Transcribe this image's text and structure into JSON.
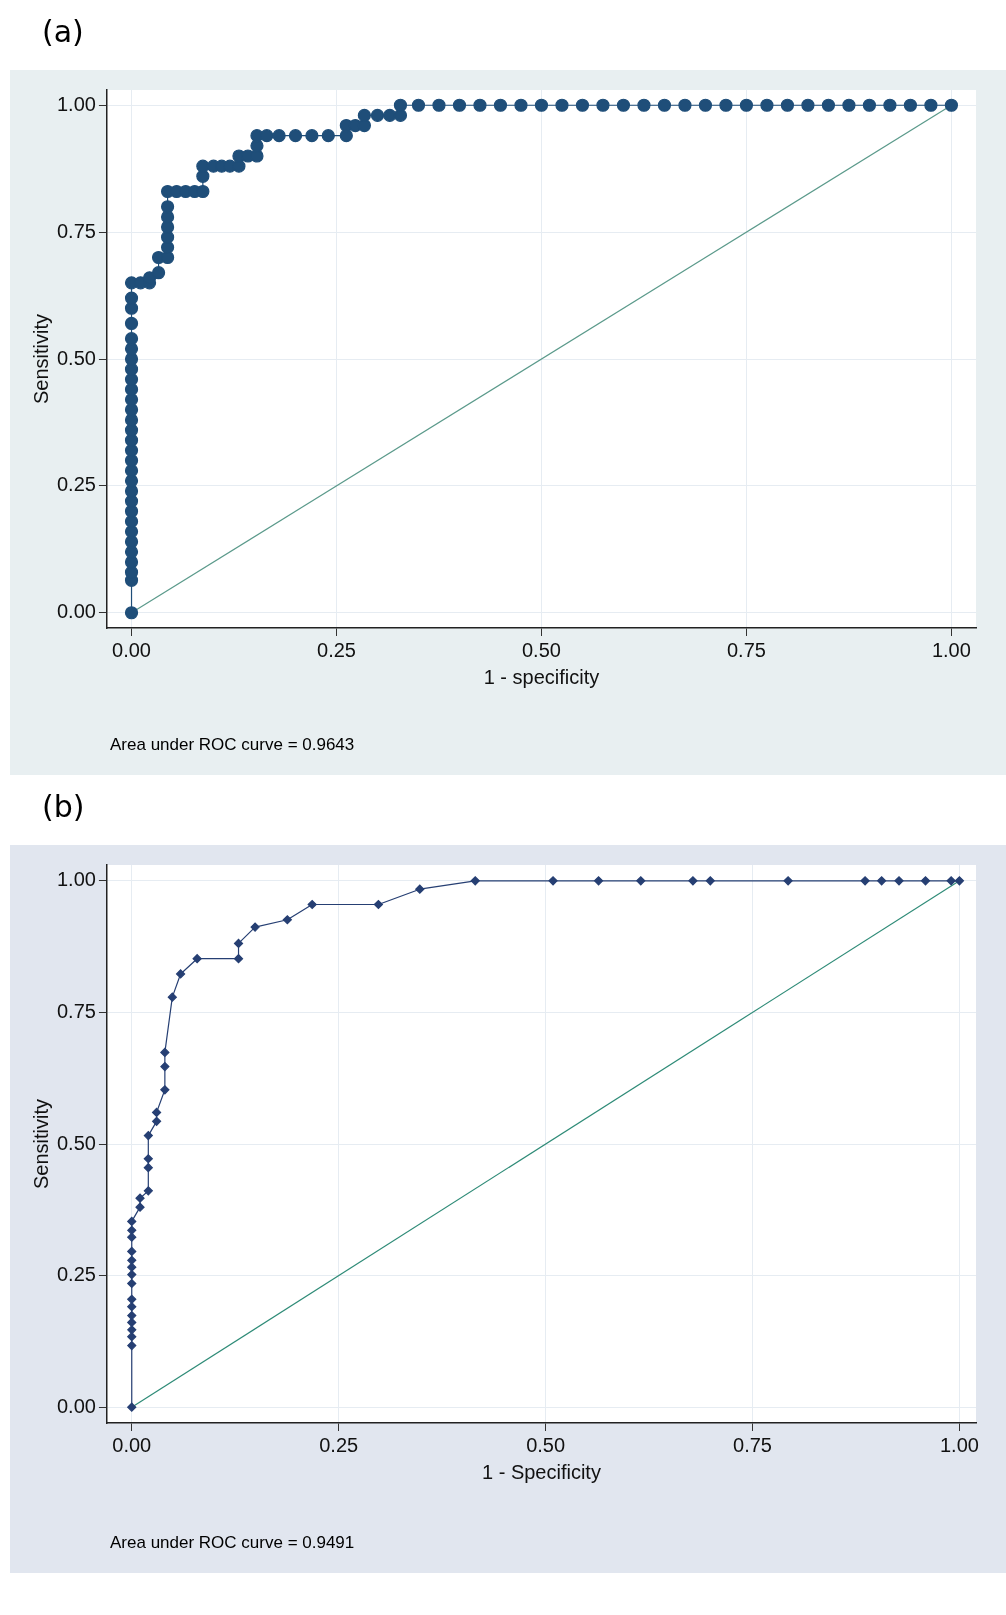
{
  "chart_data": [
    {
      "type": "line",
      "title": "(a)",
      "xlabel": "1 - specificity",
      "ylabel": "Sensitivity",
      "annotations": [
        "Area under ROC curve = 0.9643"
      ],
      "xlim": [
        -0.03,
        1.03
      ],
      "ylim": [
        -0.03,
        1.03
      ],
      "xticks": [
        {
          "value": 0,
          "label": "0.00"
        },
        {
          "value": 0.25,
          "label": "0.25"
        },
        {
          "value": 0.5,
          "label": "0.50"
        },
        {
          "value": 0.75,
          "label": "0.75"
        },
        {
          "value": 1,
          "label": "1.00"
        }
      ],
      "yticks": [
        {
          "value": 0,
          "label": "0.00"
        },
        {
          "value": 0.25,
          "label": "0.25"
        },
        {
          "value": 0.5,
          "label": "0.50"
        },
        {
          "value": 0.75,
          "label": "0.75"
        },
        {
          "value": 1,
          "label": "1.00"
        }
      ],
      "grid": true,
      "line_style": "solid",
      "series": [
        {
          "color": "#1f4e79",
          "marker": "circle",
          "x": [
            0,
            0,
            0,
            0,
            0,
            0,
            0,
            0,
            0,
            0,
            0,
            0,
            0,
            0,
            0,
            0,
            0,
            0,
            0,
            0,
            0,
            0,
            0,
            0,
            0,
            0,
            0,
            0,
            0,
            0,
            0.011,
            0.022,
            0.022,
            0.033,
            0.033,
            0.044,
            0.044,
            0.044,
            0.044,
            0.044,
            0.044,
            0.044,
            0.055,
            0.066,
            0.077,
            0.087,
            0.087,
            0.087,
            0.1,
            0.11,
            0.12,
            0.131,
            0.131,
            0.142,
            0.153,
            0.153,
            0.153,
            0.165,
            0.18,
            0.2,
            0.22,
            0.24,
            0.262,
            0.262,
            0.273,
            0.284,
            0.284,
            0.3,
            0.315,
            0.328,
            0.328,
            0.35,
            0.375,
            0.4,
            0.425,
            0.45,
            0.475,
            0.5,
            0.525,
            0.55,
            0.575,
            0.6,
            0.625,
            0.65,
            0.675,
            0.7,
            0.725,
            0.75,
            0.775,
            0.8,
            0.825,
            0.85,
            0.875,
            0.9,
            0.925,
            0.95,
            0.975,
            1
          ],
          "values": [
            0,
            0.064,
            0.08,
            0.1,
            0.12,
            0.14,
            0.16,
            0.18,
            0.2,
            0.22,
            0.24,
            0.26,
            0.28,
            0.3,
            0.32,
            0.34,
            0.36,
            0.38,
            0.4,
            0.42,
            0.44,
            0.46,
            0.48,
            0.5,
            0.52,
            0.54,
            0.57,
            0.6,
            0.62,
            0.65,
            0.65,
            0.65,
            0.66,
            0.67,
            0.7,
            0.7,
            0.72,
            0.74,
            0.76,
            0.78,
            0.8,
            0.83,
            0.83,
            0.83,
            0.83,
            0.83,
            0.86,
            0.88,
            0.88,
            0.88,
            0.88,
            0.88,
            0.9,
            0.9,
            0.9,
            0.92,
            0.94,
            0.94,
            0.94,
            0.94,
            0.94,
            0.94,
            0.94,
            0.96,
            0.96,
            0.96,
            0.98,
            0.98,
            0.98,
            0.98,
            1,
            1,
            1,
            1,
            1,
            1,
            1,
            1,
            1,
            1,
            1,
            1,
            1,
            1,
            1,
            1,
            1,
            1,
            1,
            1,
            1,
            1,
            1,
            1,
            1,
            1,
            1,
            1
          ]
        },
        {
          "type": "line",
          "color": "#5b9a8b",
          "marker": "none",
          "x": [
            0,
            1
          ],
          "values": [
            0,
            1
          ]
        }
      ]
    },
    {
      "type": "line",
      "title": "(b)",
      "xlabel": "1 - Specificity",
      "ylabel": "Sensitivity",
      "annotations": [
        "Area under ROC curve = 0.9491"
      ],
      "xlim": [
        -0.03,
        1.02
      ],
      "ylim": [
        -0.03,
        1.03
      ],
      "xticks": [
        {
          "value": 0,
          "label": "0.00"
        },
        {
          "value": 0.25,
          "label": "0.25"
        },
        {
          "value": 0.5,
          "label": "0.50"
        },
        {
          "value": 0.75,
          "label": "0.75"
        },
        {
          "value": 1,
          "label": "1.00"
        }
      ],
      "yticks": [
        {
          "value": 0,
          "label": "0.00"
        },
        {
          "value": 0.25,
          "label": "0.25"
        },
        {
          "value": 0.5,
          "label": "0.50"
        },
        {
          "value": 0.75,
          "label": "0.75"
        },
        {
          "value": 1,
          "label": "1.00"
        }
      ],
      "grid": true,
      "line_style": "solid",
      "series": [
        {
          "color": "#263f73",
          "marker": "diamond",
          "x": [
            0,
            0,
            0,
            0,
            0,
            0,
            0,
            0,
            0,
            0,
            0,
            0,
            0,
            0,
            0,
            0,
            0.01,
            0.01,
            0.02,
            0.02,
            0.02,
            0.02,
            0.03,
            0.03,
            0.04,
            0.04,
            0.04,
            0.049,
            0.059,
            0.079,
            0.129,
            0.129,
            0.149,
            0.188,
            0.218,
            0.298,
            0.348,
            0.415,
            0.509,
            0.564,
            0.615,
            0.678,
            0.699,
            0.793,
            0.886,
            0.906,
            0.927,
            0.959,
            0.99,
            1
          ],
          "values": [
            0,
            0.117,
            0.134,
            0.147,
            0.161,
            0.174,
            0.191,
            0.205,
            0.235,
            0.252,
            0.266,
            0.279,
            0.296,
            0.323,
            0.336,
            0.353,
            0.38,
            0.397,
            0.411,
            0.455,
            0.472,
            0.516,
            0.543,
            0.56,
            0.603,
            0.647,
            0.674,
            0.779,
            0.823,
            0.852,
            0.852,
            0.881,
            0.912,
            0.926,
            0.955,
            0.955,
            0.984,
            1,
            1,
            1,
            1,
            1,
            1,
            1,
            1,
            1,
            1,
            1,
            1,
            1
          ]
        },
        {
          "type": "line",
          "color": "#2e8b77",
          "marker": "none",
          "x": [
            0,
            1
          ],
          "values": [
            0,
            1
          ]
        }
      ]
    }
  ]
}
